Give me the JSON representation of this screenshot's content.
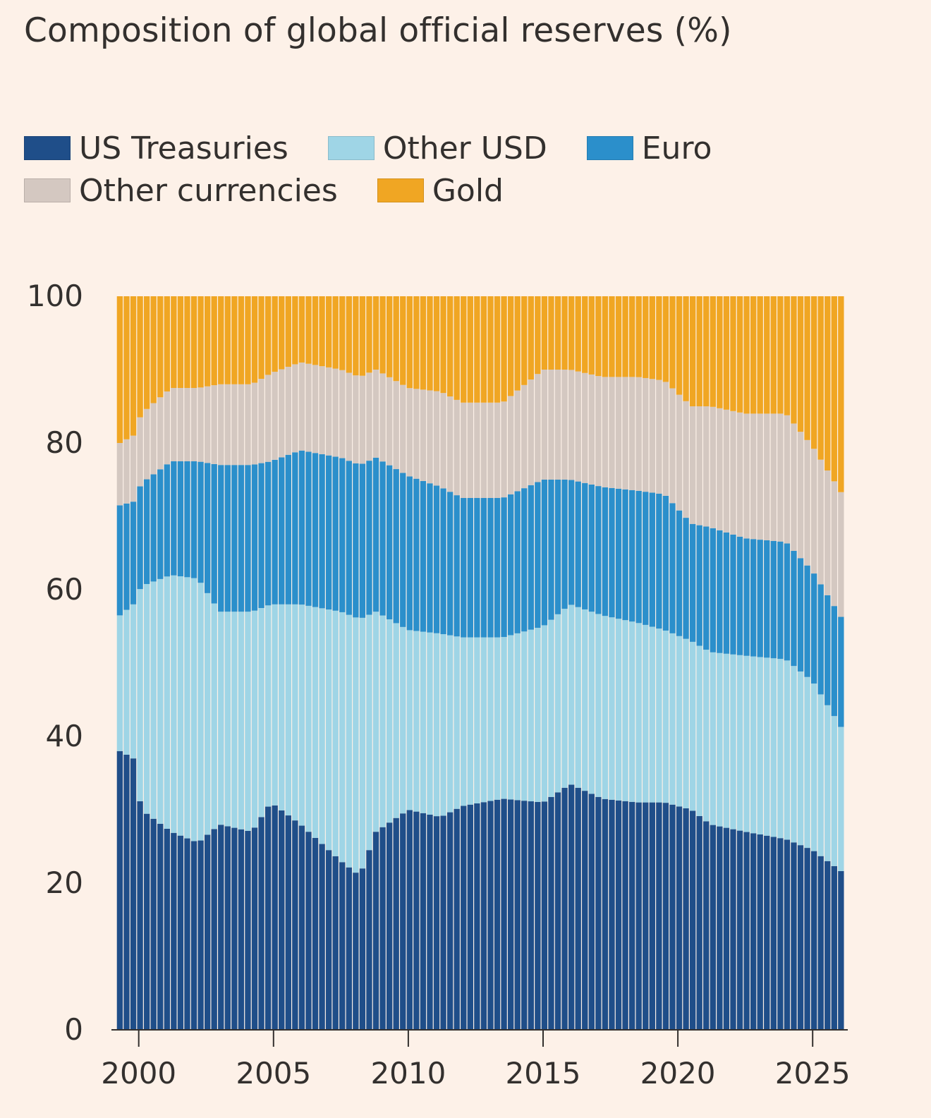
{
  "chart_data": {
    "type": "bar",
    "stacked": true,
    "title": "Composition of global official reserves (%)",
    "xlabel": "",
    "ylabel": "",
    "ylim": [
      0,
      100
    ],
    "yticks": [
      0,
      20,
      40,
      60,
      80,
      100
    ],
    "xlim": [
      1999.25,
      2026.25
    ],
    "xticks": [
      2000,
      2005,
      2010,
      2015,
      2020,
      2025
    ],
    "legend_position": "top",
    "grid": false,
    "x_knots": [
      1999.3,
      1999.8,
      2000.1,
      2001.2,
      2002.2,
      2003.0,
      2004.2,
      2004.9,
      2006.0,
      2007.5,
      2008.2,
      2008.8,
      2010.0,
      2011.2,
      2012.0,
      2013.5,
      2015.0,
      2016.0,
      2017.2,
      2018.5,
      2019.5,
      2020.5,
      2021.2,
      2022.5,
      2024.0,
      2025.0,
      2026.1
    ],
    "series": [
      {
        "name": "US Treasuries",
        "color": "#1f4e89",
        "values": [
          38,
          37,
          30,
          27,
          25.5,
          28,
          27,
          31,
          28,
          23,
          21,
          27,
          30,
          29,
          30.5,
          31.5,
          31,
          33.5,
          31.5,
          31,
          31,
          30,
          28,
          27,
          26,
          24.5,
          21.5
        ]
      },
      {
        "name": "Other USD",
        "color": "#9fd5e6",
        "values": [
          18.5,
          21,
          30.5,
          35,
          36,
          29,
          30,
          27,
          30,
          34,
          35,
          30,
          24.5,
          25,
          23,
          22,
          24,
          24.5,
          25,
          24.5,
          23.5,
          23,
          23.5,
          24,
          24.5,
          23,
          19.5
        ]
      },
      {
        "name": "Euro",
        "color": "#2b8fcb",
        "values": [
          15,
          14,
          14,
          15.5,
          16,
          20,
          20,
          19.5,
          21,
          21,
          21,
          21,
          21,
          20,
          19,
          19,
          20,
          17,
          17.5,
          18,
          18.5,
          16,
          17,
          16,
          16,
          15,
          15
        ]
      },
      {
        "name": "Other currencies",
        "color": "#d4c8c1",
        "values": [
          8.5,
          9,
          9.5,
          10,
          10,
          11,
          11,
          12,
          12,
          12,
          12,
          12,
          12,
          13,
          13,
          13,
          15,
          15,
          15,
          15.5,
          15.5,
          16,
          16.5,
          17,
          17.5,
          17,
          17
        ]
      },
      {
        "name": "Gold",
        "color": "#f0a623",
        "values": [
          20,
          19,
          16,
          12.5,
          12.5,
          12,
          12,
          10.5,
          9,
          10,
          11,
          10,
          12.5,
          13,
          14.5,
          14.5,
          10,
          10,
          11,
          11,
          11.5,
          15,
          15,
          16,
          16,
          20.5,
          27
        ]
      }
    ],
    "bars_per_year": 4
  }
}
